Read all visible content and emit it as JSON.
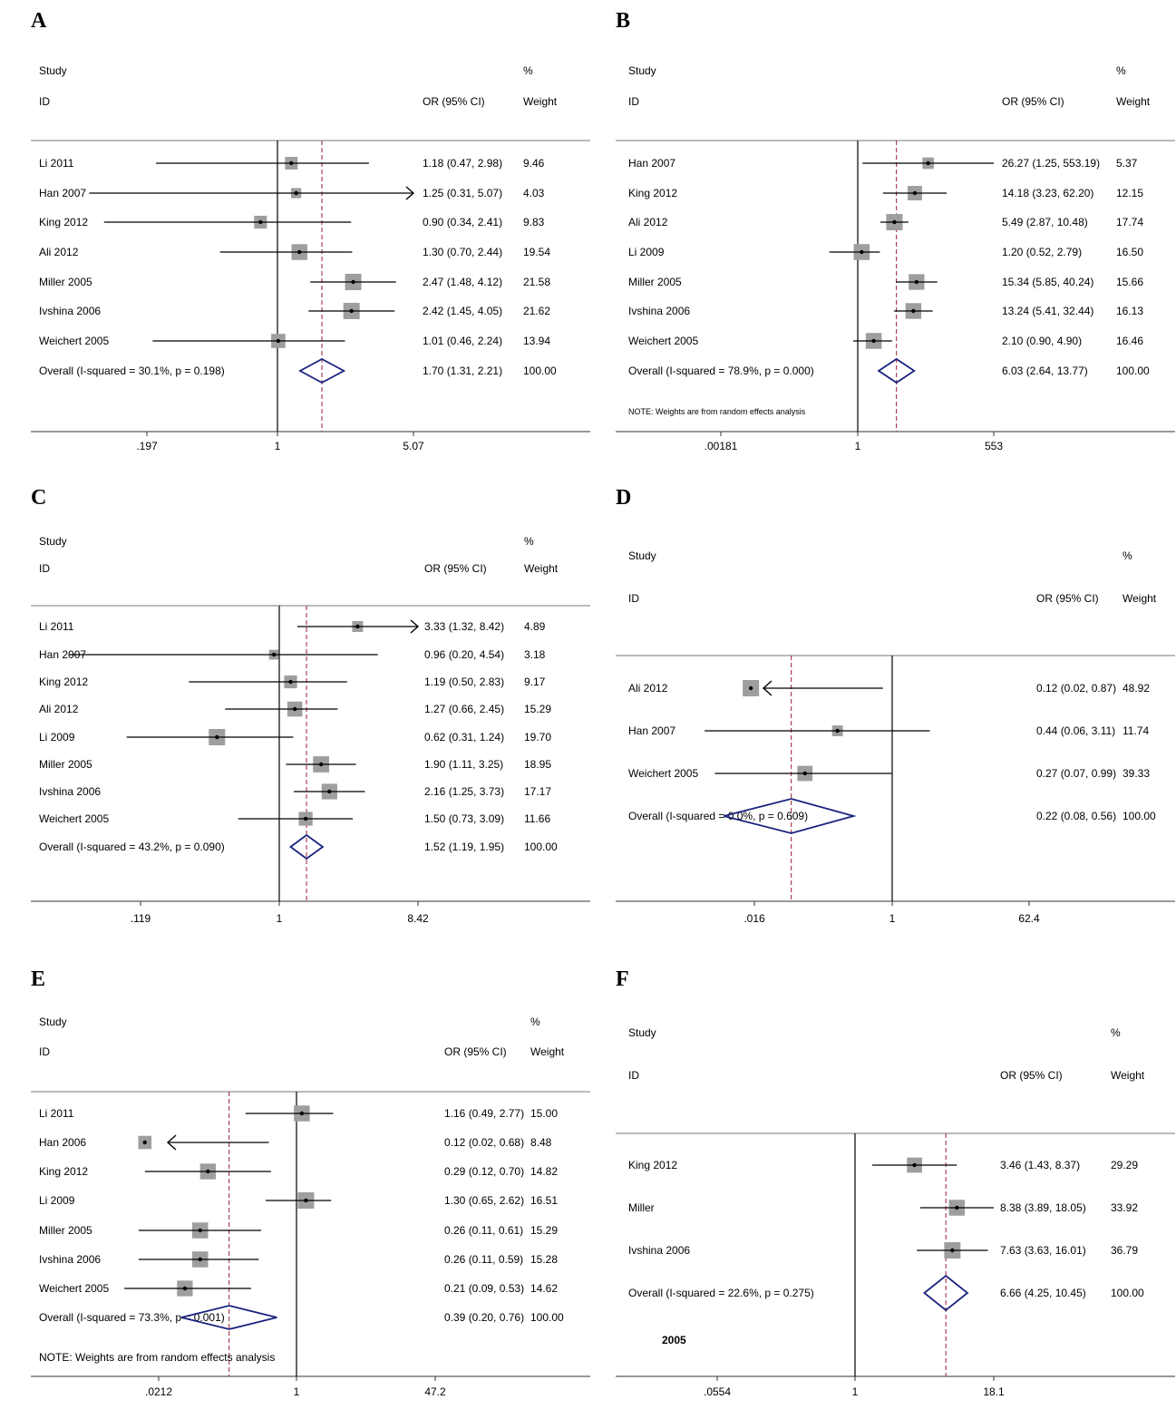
{
  "page": {
    "background": "#ffffff",
    "plot_background": "#e8eef2"
  },
  "colors": {
    "diamond": "#1a237e",
    "overall_line": "#9b1b30",
    "box": "#9e9e9e",
    "text": "#000000"
  },
  "chart_data": [
    {
      "id": "A",
      "label": "A",
      "type": "forest",
      "scale": "log",
      "header": {
        "study": "Study",
        "id": "ID",
        "or_ci": "OR (95% CI)",
        "pct": "%",
        "weight": "Weight"
      },
      "ticks": [
        {
          "value": 0.197,
          "label": ".197"
        },
        {
          "value": 1,
          "label": "1"
        },
        {
          "value": 5.07,
          "label": "5.07"
        }
      ],
      "studies": [
        {
          "name": "Li 2011",
          "or": 1.18,
          "lo": 0.47,
          "hi": 2.98,
          "text": "1.18 (0.47, 2.98)",
          "weight": "9.46",
          "w": 9.46
        },
        {
          "name": "Han 2007",
          "or": 1.25,
          "lo": 0.31,
          "hi": 5.07,
          "text": "1.25 (0.31, 5.07)",
          "weight": "4.03",
          "w": 4.03,
          "arrow_right": true
        },
        {
          "name": "King 2012",
          "or": 0.9,
          "lo": 0.34,
          "hi": 2.41,
          "text": "0.90 (0.34, 2.41)",
          "weight": "9.83",
          "w": 9.83
        },
        {
          "name": "Ali 2012",
          "or": 1.3,
          "lo": 0.7,
          "hi": 2.44,
          "text": "1.30 (0.70, 2.44)",
          "weight": "19.54",
          "w": 19.54
        },
        {
          "name": "Miller 2005",
          "or": 2.47,
          "lo": 1.48,
          "hi": 4.12,
          "text": "2.47 (1.48, 4.12)",
          "weight": "21.58",
          "w": 21.58
        },
        {
          "name": "Ivshina 2006",
          "or": 2.42,
          "lo": 1.45,
          "hi": 4.05,
          "text": "2.42 (1.45, 4.05)",
          "weight": "21.62",
          "w": 21.62
        },
        {
          "name": "Weichert 2005",
          "or": 1.01,
          "lo": 0.46,
          "hi": 2.24,
          "text": "1.01 (0.46, 2.24)",
          "weight": "13.94",
          "w": 13.94
        }
      ],
      "overall": {
        "name": "Overall  (I-squared = 30.1%, p = 0.198)",
        "or": 1.7,
        "lo": 1.31,
        "hi": 2.21,
        "text": "1.70 (1.31, 2.21)",
        "weight": "100.00"
      },
      "note": ""
    },
    {
      "id": "B",
      "label": "B",
      "type": "forest",
      "scale": "log",
      "header": {
        "study": "Study",
        "id": "ID",
        "or_ci": "OR (95% CI)",
        "pct": "%",
        "weight": "Weight"
      },
      "ticks": [
        {
          "value": 0.00181,
          "label": ".00181"
        },
        {
          "value": 1,
          "label": "1"
        },
        {
          "value": 553,
          "label": "553"
        }
      ],
      "studies": [
        {
          "name": "Han 2007",
          "or": 26.27,
          "lo": 1.25,
          "hi": 553.19,
          "text": "26.27 (1.25, 553.19)",
          "weight": "5.37",
          "w": 5.37
        },
        {
          "name": "King 2012",
          "or": 14.18,
          "lo": 3.23,
          "hi": 62.2,
          "text": "14.18 (3.23, 62.20)",
          "weight": "12.15",
          "w": 12.15
        },
        {
          "name": "Ali 2012",
          "or": 5.49,
          "lo": 2.87,
          "hi": 10.48,
          "text": "5.49 (2.87, 10.48)",
          "weight": "17.74",
          "w": 17.74
        },
        {
          "name": "Li 2009",
          "or": 1.2,
          "lo": 0.52,
          "hi": 2.79,
          "text": "1.20 (0.52, 2.79)",
          "weight": "16.50",
          "w": 16.5
        },
        {
          "name": "Miller 2005",
          "or": 15.34,
          "lo": 5.85,
          "hi": 40.24,
          "text": "15.34 (5.85, 40.24)",
          "weight": "15.66",
          "w": 15.66
        },
        {
          "name": "Ivshina 2006",
          "or": 13.24,
          "lo": 5.41,
          "hi": 32.44,
          "text": "13.24 (5.41, 32.44)",
          "weight": "16.13",
          "w": 16.13
        },
        {
          "name": "Weichert 2005",
          "or": 2.1,
          "lo": 0.9,
          "hi": 4.9,
          "text": "2.10 (0.90, 4.90)",
          "weight": "16.46",
          "w": 16.46
        }
      ],
      "overall": {
        "name": "Overall  (I-squared = 78.9%, p = 0.000)",
        "or": 6.03,
        "lo": 2.64,
        "hi": 13.77,
        "text": "6.03 (2.64, 13.77)",
        "weight": "100.00"
      },
      "note": "NOTE: Weights are from random effects analysis"
    },
    {
      "id": "C",
      "label": "C",
      "type": "forest",
      "scale": "log",
      "header": {
        "study": "Study",
        "id": "ID",
        "or_ci": "OR (95% CI)",
        "pct": "%",
        "weight": "Weight"
      },
      "ticks": [
        {
          "value": 0.119,
          "label": ".119"
        },
        {
          "value": 1,
          "label": "1"
        },
        {
          "value": 8.42,
          "label": "8.42"
        }
      ],
      "studies": [
        {
          "name": "Li 2011",
          "or": 3.33,
          "lo": 1.32,
          "hi": 8.42,
          "text": "3.33 (1.32, 8.42)",
          "weight": "4.89",
          "w": 4.89,
          "arrow_right": true
        },
        {
          "name": "Han 2007",
          "or": 0.96,
          "lo": 0.2,
          "hi": 4.54,
          "text": "0.96 (0.20, 4.54)",
          "weight": "3.18",
          "w": 3.18
        },
        {
          "name": "King 2012",
          "or": 1.19,
          "lo": 0.5,
          "hi": 2.83,
          "text": "1.19 (0.50, 2.83)",
          "weight": "9.17",
          "w": 9.17
        },
        {
          "name": "Ali 2012",
          "or": 1.27,
          "lo": 0.66,
          "hi": 2.45,
          "text": "1.27 (0.66, 2.45)",
          "weight": "15.29",
          "w": 15.29
        },
        {
          "name": "Li 2009",
          "or": 0.62,
          "lo": 0.31,
          "hi": 1.24,
          "text": "0.62 (0.31, 1.24)",
          "weight": "19.70",
          "w": 19.7
        },
        {
          "name": "Miller 2005",
          "or": 1.9,
          "lo": 1.11,
          "hi": 3.25,
          "text": "1.90 (1.11, 3.25)",
          "weight": "18.95",
          "w": 18.95
        },
        {
          "name": "Ivshina 2006",
          "or": 2.16,
          "lo": 1.25,
          "hi": 3.73,
          "text": "2.16 (1.25, 3.73)",
          "weight": "17.17",
          "w": 17.17
        },
        {
          "name": "Weichert 2005",
          "or": 1.5,
          "lo": 0.73,
          "hi": 3.09,
          "text": "1.50 (0.73, 3.09)",
          "weight": "11.66",
          "w": 11.66
        }
      ],
      "overall": {
        "name": "Overall  (I-squared = 43.2%, p = 0.090)",
        "or": 1.52,
        "lo": 1.19,
        "hi": 1.95,
        "text": "1.52 (1.19, 1.95)",
        "weight": "100.00"
      },
      "note": ""
    },
    {
      "id": "D",
      "label": "D",
      "type": "forest",
      "scale": "log",
      "header": {
        "study": "Study",
        "id": "ID",
        "or_ci": "OR (95% CI)",
        "pct": "%",
        "weight": "Weight"
      },
      "ticks": [
        {
          "value": 0.016,
          "label": ".016"
        },
        {
          "value": 1,
          "label": "1"
        },
        {
          "value": 62.4,
          "label": "62.4"
        }
      ],
      "studies": [
        {
          "name": "Ali 2012",
          "or": 0.12,
          "lo": 0.02,
          "hi": 0.87,
          "text": "0.12 (0.02, 0.87)",
          "weight": "48.92",
          "w": 48.92,
          "arrow_left": true
        },
        {
          "name": "Han 2007",
          "or": 0.44,
          "lo": 0.06,
          "hi": 3.11,
          "text": "0.44 (0.06, 3.11)",
          "weight": "11.74",
          "w": 11.74
        },
        {
          "name": "Weichert 2005",
          "or": 0.27,
          "lo": 0.07,
          "hi": 0.99,
          "text": "0.27 (0.07, 0.99)",
          "weight": "39.33",
          "w": 39.33
        }
      ],
      "overall": {
        "name": "Overall  (I-squared = 0.0%, p = 0.609)",
        "or": 0.22,
        "lo": 0.08,
        "hi": 0.56,
        "text": "0.22 (0.08, 0.56)",
        "weight": "100.00"
      },
      "note": ""
    },
    {
      "id": "E",
      "label": "E",
      "type": "forest",
      "scale": "log",
      "header": {
        "study": "Study",
        "id": "ID",
        "or_ci": "OR (95% CI)",
        "pct": "%",
        "weight": "Weight"
      },
      "ticks": [
        {
          "value": 0.0212,
          "label": ".0212"
        },
        {
          "value": 1,
          "label": "1"
        },
        {
          "value": 47.2,
          "label": "47.2"
        }
      ],
      "studies": [
        {
          "name": "Li 2011",
          "or": 1.16,
          "lo": 0.49,
          "hi": 2.77,
          "text": "1.16 (0.49, 2.77)",
          "weight": "15.00",
          "w": 15.0
        },
        {
          "name": "Han 2006",
          "or": 0.12,
          "lo": 0.02,
          "hi": 0.68,
          "text": "0.12 (0.02, 0.68)",
          "weight": "8.48",
          "w": 8.48,
          "arrow_left": true
        },
        {
          "name": "King 2012",
          "or": 0.29,
          "lo": 0.12,
          "hi": 0.7,
          "text": "0.29 (0.12, 0.70)",
          "weight": "14.82",
          "w": 14.82
        },
        {
          "name": "Li 2009",
          "or": 1.3,
          "lo": 0.65,
          "hi": 2.62,
          "text": "1.30 (0.65, 2.62)",
          "weight": "16.51",
          "w": 16.51
        },
        {
          "name": "Miller 2005",
          "or": 0.26,
          "lo": 0.11,
          "hi": 0.61,
          "text": "0.26 (0.11, 0.61)",
          "weight": "15.29",
          "w": 15.29
        },
        {
          "name": "Ivshina 2006",
          "or": 0.26,
          "lo": 0.11,
          "hi": 0.59,
          "text": "0.26 (0.11, 0.59)",
          "weight": "15.28",
          "w": 15.28
        },
        {
          "name": "Weichert 2005",
          "or": 0.21,
          "lo": 0.09,
          "hi": 0.53,
          "text": "0.21 (0.09, 0.53)",
          "weight": "14.62",
          "w": 14.62
        }
      ],
      "overall": {
        "name": "Overall  (I-squared = 73.3%, p = 0.001)",
        "or": 0.39,
        "lo": 0.2,
        "hi": 0.76,
        "text": "0.39 (0.20, 0.76)",
        "weight": "100.00"
      },
      "note": "NOTE: Weights are from random effects analysis"
    },
    {
      "id": "F",
      "label": "F",
      "type": "forest",
      "scale": "log",
      "header": {
        "study": "Study",
        "id": "ID",
        "or_ci": "OR (95% CI)",
        "pct": "%",
        "weight": "Weight"
      },
      "ticks": [
        {
          "value": 0.0554,
          "label": ".0554"
        },
        {
          "value": 1,
          "label": "1"
        },
        {
          "value": 18.1,
          "label": "18.1"
        }
      ],
      "studies": [
        {
          "name": "King 2012",
          "or": 3.46,
          "lo": 1.43,
          "hi": 8.37,
          "text": "3.46 (1.43, 8.37)",
          "weight": "29.29",
          "w": 29.29
        },
        {
          "name": "Miller",
          "or": 8.38,
          "lo": 3.89,
          "hi": 18.05,
          "text": "8.38 (3.89, 18.05)",
          "weight": "33.92",
          "w": 33.92
        },
        {
          "name": "Ivshina 2006",
          "or": 7.63,
          "lo": 3.63,
          "hi": 16.01,
          "text": "7.63 (3.63, 16.01)",
          "weight": "36.79",
          "w": 36.79
        }
      ],
      "overall": {
        "name": "Overall  (I-squared = 22.6%, p = 0.275)",
        "or": 6.66,
        "lo": 4.25,
        "hi": 10.45,
        "text": "6.66 (4.25, 10.45)",
        "weight": "100.00"
      },
      "note": "",
      "extra": "2005"
    }
  ]
}
